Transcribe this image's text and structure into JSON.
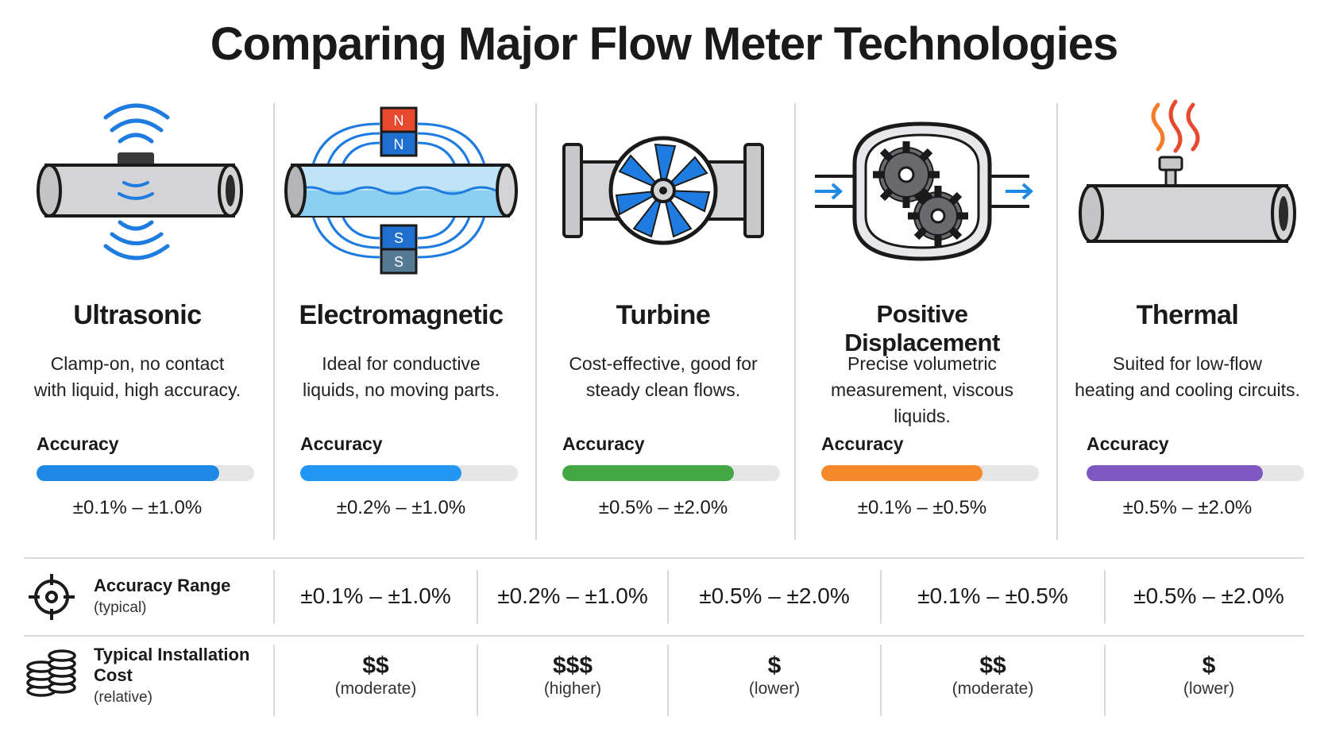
{
  "title": "Comparing Major Flow Meter Technologies",
  "meters": [
    {
      "name": "Ultrasonic",
      "desc1": "Clamp-on, no contact",
      "desc2": "with liquid, high accuracy.",
      "accuracy_label": "Accuracy",
      "accuracy": "±0.1% – ±1.0%",
      "bar_fraction": 0.84,
      "color": "#1e88e5",
      "icon": "ultrasonic-pipe-icon"
    },
    {
      "name": "Electromagnetic",
      "desc1": "Ideal for conductive",
      "desc2": "liquids, no moving parts.",
      "accuracy_label": "Accuracy",
      "accuracy": "±0.2% – ±1.0%",
      "bar_fraction": 0.74,
      "color": "#2196f3",
      "icon": "magnet-pipe-icon"
    },
    {
      "name": "Turbine",
      "desc1": "Cost-effective, good for",
      "desc2": "steady clean flows.",
      "accuracy_label": "Accuracy",
      "accuracy": "±0.5% – ±2.0%",
      "bar_fraction": 0.79,
      "color": "#43a843",
      "icon": "turbine-icon"
    },
    {
      "name": "Positive Displacement",
      "desc1": "Precise volumetric",
      "desc2": "measurement, viscous liquids.",
      "accuracy_label": "Accuracy",
      "accuracy": "±0.1% – ±0.5%",
      "bar_fraction": 0.74,
      "color": "#f68a2b",
      "icon": "gears-icon"
    },
    {
      "name": "Thermal",
      "desc1": "Suited for low-flow",
      "desc2": "heating and cooling circuits.",
      "accuracy_label": "Accuracy",
      "accuracy": "±0.5% – ±2.0%",
      "bar_fraction": 0.81,
      "color": "#7e57c2",
      "icon": "heat-pipe-icon"
    }
  ],
  "table": {
    "accuracy_row": {
      "title": "Accuracy Range",
      "sub": "(typical)",
      "icon": "target-icon",
      "values": [
        "±0.1% – ±1.0%",
        "±0.2% – ±1.0%",
        "±0.5% – ±2.0%",
        "±0.1% – ±0.5%",
        "±0.5% – ±2.0%"
      ]
    },
    "cost_row": {
      "title1": "Typical Installation",
      "title2": "Cost",
      "sub": "(relative)",
      "icon": "coins-icon",
      "values": [
        "$$",
        "$$$",
        "$",
        "$$",
        "$"
      ],
      "notes": [
        "(moderate)",
        "(higher)",
        "(lower)",
        "(moderate)",
        "(lower)"
      ]
    }
  }
}
